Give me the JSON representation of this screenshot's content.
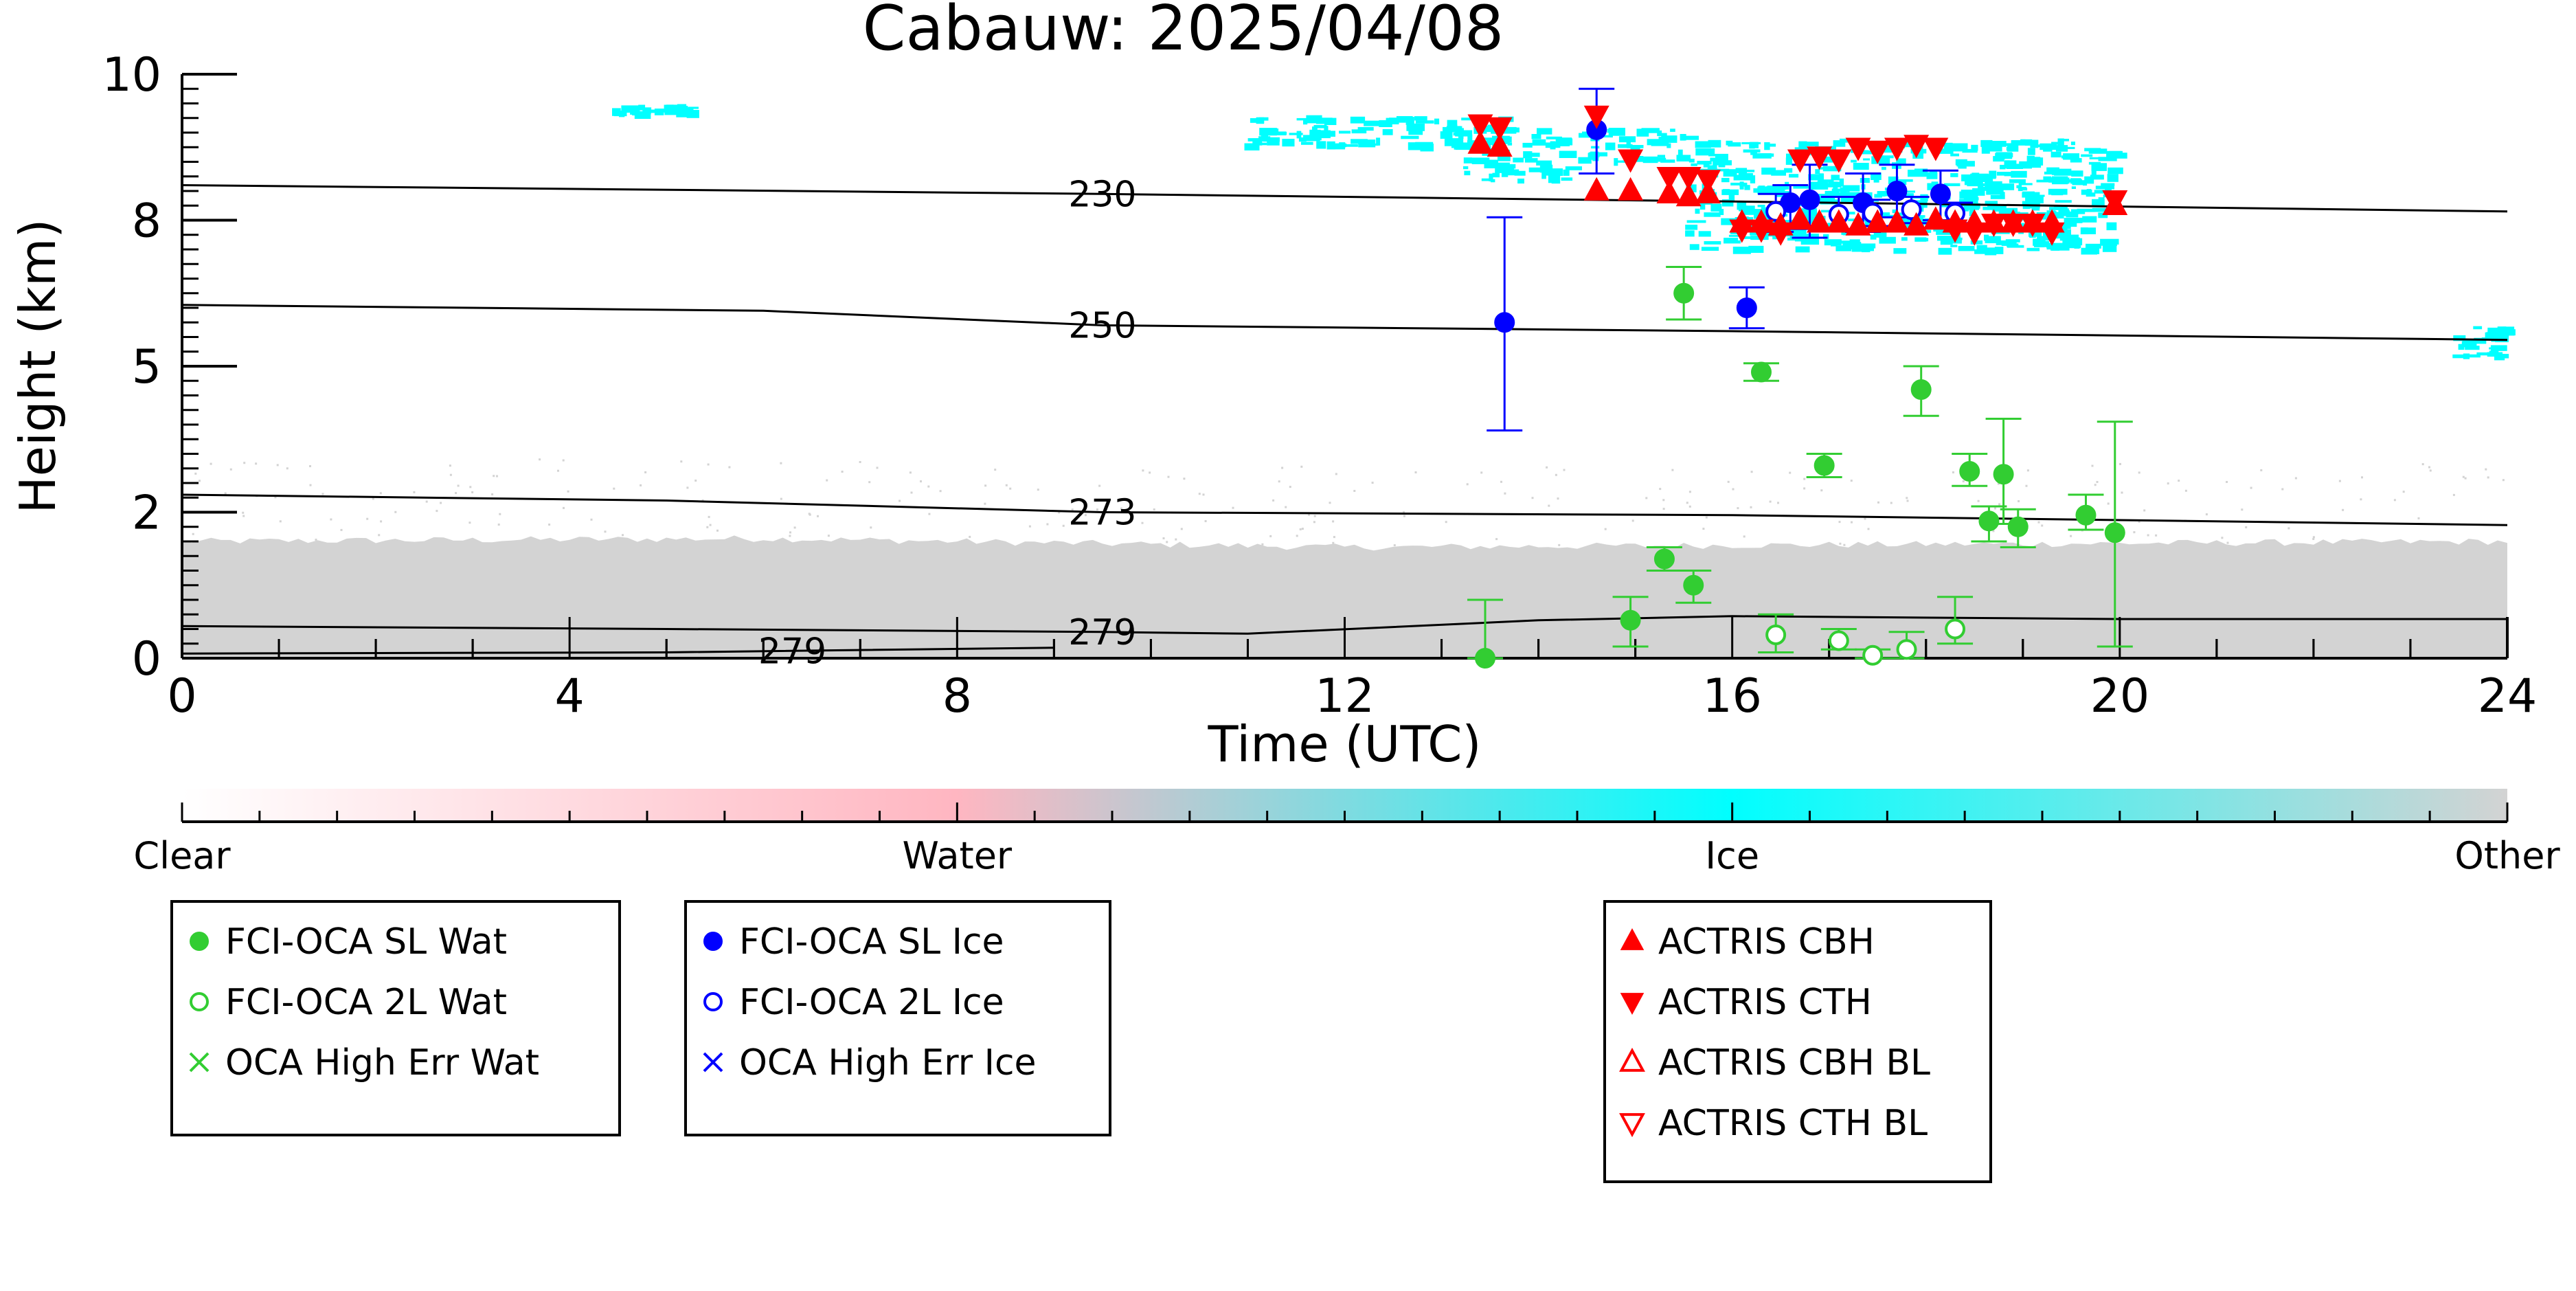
{
  "chart_data": {
    "type": "scatter",
    "title": "Cabauw: 2025/04/08",
    "xlabel": "Time (UTC)",
    "ylabel": "Height (km)",
    "xlim": [
      0,
      24
    ],
    "ylim": [
      0,
      10
    ],
    "x_ticks": [
      0,
      4,
      8,
      12,
      16,
      20,
      24
    ],
    "y_ticks": [
      {
        "value": 0,
        "label": "0"
      },
      {
        "value": 2.5,
        "label": "2"
      },
      {
        "value": 5,
        "label": "5"
      },
      {
        "value": 7.5,
        "label": "8"
      },
      {
        "value": 10,
        "label": "10"
      }
    ],
    "grid": false,
    "background_field": {
      "colorbar_labels": [
        "Clear",
        "Water",
        "Ice",
        "Other"
      ],
      "colors": {
        "clear": "#ffffff",
        "water": "#ffb6c1",
        "ice": "#00ffff",
        "other": "#d3d3d3"
      },
      "ice_regions": [
        {
          "x0": 4.4,
          "x1": 5.3,
          "y0": 9.35,
          "y1": 9.5
        },
        {
          "x0": 10.9,
          "x1": 13.7,
          "y0": 8.8,
          "y1": 9.3
        },
        {
          "x0": 13.1,
          "x1": 14.3,
          "y0": 8.2,
          "y1": 9.1
        },
        {
          "x0": 14.4,
          "x1": 15.5,
          "y0": 8.5,
          "y1": 9.1
        },
        {
          "x0": 15.5,
          "x1": 19.9,
          "y0": 7.0,
          "y1": 8.9
        },
        {
          "x0": 23.4,
          "x1": 24.0,
          "y0": 5.2,
          "y1": 5.7
        }
      ],
      "other_top_profile": [
        {
          "x": 0,
          "top": 2.0
        },
        {
          "x": 6,
          "top": 2.05
        },
        {
          "x": 12,
          "top": 1.9
        },
        {
          "x": 18,
          "top": 1.95
        },
        {
          "x": 24,
          "top": 2.0
        }
      ]
    },
    "isotherms": [
      {
        "label": "230",
        "label_x": 9.5,
        "points": [
          [
            0,
            8.1
          ],
          [
            9.5,
            7.95
          ],
          [
            16,
            7.82
          ],
          [
            24,
            7.65
          ]
        ]
      },
      {
        "label": "250",
        "label_x": 9.5,
        "points": [
          [
            0,
            6.05
          ],
          [
            6,
            5.95
          ],
          [
            9.5,
            5.7
          ],
          [
            16,
            5.6
          ],
          [
            24,
            5.45
          ]
        ]
      },
      {
        "label": "273",
        "label_x": 9.5,
        "points": [
          [
            0,
            2.8
          ],
          [
            5,
            2.7
          ],
          [
            9.5,
            2.5
          ],
          [
            16,
            2.45
          ],
          [
            24,
            2.28
          ]
        ]
      },
      {
        "label": "279",
        "label_x": 9.5,
        "points": [
          [
            0,
            0.55
          ],
          [
            5,
            0.5
          ],
          [
            9.5,
            0.45
          ],
          [
            11,
            0.42
          ],
          [
            14,
            0.65
          ],
          [
            16,
            0.72
          ],
          [
            20,
            0.67
          ],
          [
            24,
            0.67
          ]
        ]
      },
      {
        "label": "279",
        "label_x": 6.3,
        "points": [
          [
            0,
            0.08
          ],
          [
            5,
            0.1
          ],
          [
            9.0,
            0.18
          ]
        ]
      }
    ],
    "series": [
      {
        "name": "FCI-OCA SL Wat",
        "color": "#32cd32",
        "marker": "filled-circle",
        "points": [
          {
            "x": 13.45,
            "y": 0.0,
            "lo": 0.0,
            "hi": 1.0
          },
          {
            "x": 14.95,
            "y": 0.65,
            "lo": 0.2,
            "hi": 1.05
          },
          {
            "x": 15.3,
            "y": 1.7,
            "lo": 1.5,
            "hi": 1.9
          },
          {
            "x": 15.6,
            "y": 1.25,
            "lo": 0.95,
            "hi": 1.5
          },
          {
            "x": 15.5,
            "y": 6.25,
            "lo": 5.8,
            "hi": 6.7
          },
          {
            "x": 16.3,
            "y": 4.9,
            "lo": 4.75,
            "hi": 5.05
          },
          {
            "x": 16.95,
            "y": 3.3,
            "lo": 3.1,
            "hi": 3.5
          },
          {
            "x": 17.95,
            "y": 4.6,
            "lo": 4.15,
            "hi": 5.0
          },
          {
            "x": 18.45,
            "y": 3.2,
            "lo": 2.95,
            "hi": 3.5
          },
          {
            "x": 18.65,
            "y": 2.35,
            "lo": 2.0,
            "hi": 2.6
          },
          {
            "x": 18.8,
            "y": 3.15,
            "lo": 2.3,
            "hi": 4.1
          },
          {
            "x": 18.95,
            "y": 2.25,
            "lo": 1.9,
            "hi": 2.55
          },
          {
            "x": 19.65,
            "y": 2.45,
            "lo": 2.2,
            "hi": 2.8
          },
          {
            "x": 19.95,
            "y": 2.15,
            "lo": 0.2,
            "hi": 4.05
          }
        ]
      },
      {
        "name": "FCI-OCA 2L Wat",
        "color": "#32cd32",
        "marker": "open-circle",
        "points": [
          {
            "x": 16.45,
            "y": 0.4,
            "lo": 0.1,
            "hi": 0.75
          },
          {
            "x": 17.1,
            "y": 0.3,
            "lo": 0.15,
            "hi": 0.5
          },
          {
            "x": 17.45,
            "y": 0.05,
            "lo": 0.0,
            "hi": 0.15
          },
          {
            "x": 17.8,
            "y": 0.15,
            "lo": 0.0,
            "hi": 0.45
          },
          {
            "x": 18.3,
            "y": 0.5,
            "lo": 0.25,
            "hi": 1.05
          }
        ]
      },
      {
        "name": "OCA High Err Wat",
        "color": "#32cd32",
        "marker": "x",
        "points": []
      },
      {
        "name": "FCI-OCA SL Ice",
        "color": "#0000ff",
        "marker": "filled-circle",
        "points": [
          {
            "x": 13.65,
            "y": 5.75,
            "lo": 3.9,
            "hi": 7.55
          },
          {
            "x": 14.6,
            "y": 9.05,
            "lo": 8.3,
            "hi": 9.75
          },
          {
            "x": 16.15,
            "y": 6.0,
            "lo": 5.65,
            "hi": 6.35
          },
          {
            "x": 16.8,
            "y": 7.85,
            "lo": 7.2,
            "hi": 8.45
          },
          {
            "x": 16.6,
            "y": 7.8,
            "lo": 7.35,
            "hi": 8.1
          },
          {
            "x": 17.35,
            "y": 7.8,
            "lo": 7.3,
            "hi": 8.3
          },
          {
            "x": 17.7,
            "y": 8.0,
            "lo": 7.55,
            "hi": 8.45
          },
          {
            "x": 18.15,
            "y": 7.95,
            "lo": 7.5,
            "hi": 8.35
          }
        ]
      },
      {
        "name": "FCI-OCA 2L Ice",
        "color": "#0000ff",
        "marker": "open-circle",
        "points": [
          {
            "x": 16.45,
            "y": 7.65,
            "lo": 7.3,
            "hi": 7.95
          },
          {
            "x": 17.1,
            "y": 7.6,
            "lo": 7.35,
            "hi": 7.9
          },
          {
            "x": 17.45,
            "y": 7.62,
            "lo": 7.4,
            "hi": 7.85
          },
          {
            "x": 17.85,
            "y": 7.68,
            "lo": 7.45,
            "hi": 7.9
          },
          {
            "x": 18.3,
            "y": 7.62,
            "lo": 7.45,
            "hi": 7.8
          }
        ]
      },
      {
        "name": "OCA High Err Ice",
        "color": "#0000ff",
        "marker": "x",
        "points": []
      },
      {
        "name": "ACTRIS CBH",
        "color": "#ff0000",
        "marker": "triangle-up-filled",
        "points": [
          {
            "x": 13.4,
            "y": 8.8
          },
          {
            "x": 13.6,
            "y": 8.75
          },
          {
            "x": 14.6,
            "y": 8.0
          },
          {
            "x": 14.95,
            "y": 8.0
          },
          {
            "x": 15.35,
            "y": 7.95
          },
          {
            "x": 15.55,
            "y": 7.9
          },
          {
            "x": 15.75,
            "y": 7.95
          },
          {
            "x": 16.1,
            "y": 7.45
          },
          {
            "x": 16.3,
            "y": 7.45
          },
          {
            "x": 16.5,
            "y": 7.4
          },
          {
            "x": 16.7,
            "y": 7.5
          },
          {
            "x": 16.9,
            "y": 7.45
          },
          {
            "x": 17.1,
            "y": 7.45
          },
          {
            "x": 17.3,
            "y": 7.4
          },
          {
            "x": 17.5,
            "y": 7.45
          },
          {
            "x": 17.7,
            "y": 7.45
          },
          {
            "x": 17.9,
            "y": 7.4
          },
          {
            "x": 18.1,
            "y": 7.5
          },
          {
            "x": 18.3,
            "y": 7.45
          },
          {
            "x": 18.5,
            "y": 7.45
          },
          {
            "x": 18.7,
            "y": 7.45
          },
          {
            "x": 18.9,
            "y": 7.45
          },
          {
            "x": 19.1,
            "y": 7.45
          },
          {
            "x": 19.3,
            "y": 7.45
          },
          {
            "x": 19.95,
            "y": 7.75
          }
        ]
      },
      {
        "name": "ACTRIS CTH",
        "color": "#ff0000",
        "marker": "triangle-down-filled",
        "points": [
          {
            "x": 13.4,
            "y": 9.15
          },
          {
            "x": 13.6,
            "y": 9.1
          },
          {
            "x": 14.6,
            "y": 9.3
          },
          {
            "x": 14.95,
            "y": 8.55
          },
          {
            "x": 15.35,
            "y": 8.25
          },
          {
            "x": 15.55,
            "y": 8.25
          },
          {
            "x": 15.75,
            "y": 8.2
          },
          {
            "x": 16.1,
            "y": 7.35
          },
          {
            "x": 16.3,
            "y": 7.35
          },
          {
            "x": 16.5,
            "y": 7.3
          },
          {
            "x": 16.7,
            "y": 8.55
          },
          {
            "x": 16.9,
            "y": 8.6
          },
          {
            "x": 17.1,
            "y": 8.55
          },
          {
            "x": 17.3,
            "y": 8.75
          },
          {
            "x": 17.5,
            "y": 8.7
          },
          {
            "x": 17.7,
            "y": 8.75
          },
          {
            "x": 17.9,
            "y": 8.8
          },
          {
            "x": 18.1,
            "y": 8.75
          },
          {
            "x": 18.3,
            "y": 7.35
          },
          {
            "x": 18.5,
            "y": 7.3
          },
          {
            "x": 18.7,
            "y": 7.45
          },
          {
            "x": 18.9,
            "y": 7.45
          },
          {
            "x": 19.1,
            "y": 7.45
          },
          {
            "x": 19.3,
            "y": 7.3
          },
          {
            "x": 19.95,
            "y": 7.85
          }
        ]
      },
      {
        "name": "ACTRIS CBH BL",
        "color": "#ff0000",
        "marker": "triangle-up-open",
        "points": []
      },
      {
        "name": "ACTRIS CTH BL",
        "color": "#ff0000",
        "marker": "triangle-down-open",
        "points": []
      }
    ],
    "legend_groups": [
      {
        "entries": [
          0,
          1,
          2
        ]
      },
      {
        "entries": [
          3,
          4,
          5
        ]
      },
      {
        "entries": [
          6,
          7,
          8,
          9
        ]
      }
    ],
    "legend_placement": "below-plot"
  }
}
